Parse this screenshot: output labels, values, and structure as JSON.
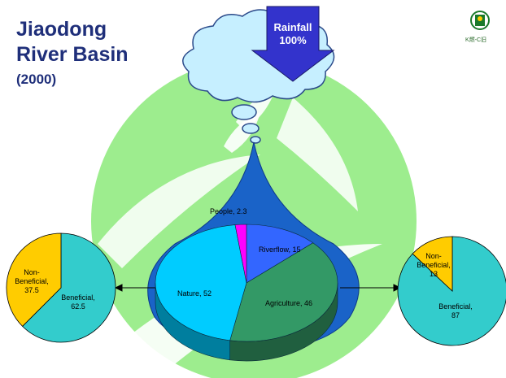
{
  "slide": {
    "title_line1": "Jiaodong",
    "title_line2": "River Basin",
    "year": "(2000)",
    "rainfall_line1": "Rainfall",
    "rainfall_line2": "100%",
    "logo_text": "K燃-C旧"
  },
  "colors": {
    "nature": "#00ccff",
    "agriculture": "#339966",
    "riverflow": "#3366ff",
    "people": "#ff00ff",
    "beneficial": "#33cccc",
    "non_beneficial": "#ffcc00",
    "background_leaf": "#99ee88",
    "drop": "#1a63c8"
  },
  "chart_data": [
    {
      "type": "pie",
      "style": "3d",
      "slices": [
        {
          "label": "Riverflow, 15",
          "name": "Riverflow",
          "value": 15
        },
        {
          "label": "Agriculture, 46",
          "name": "Agriculture",
          "value": 46
        },
        {
          "label": "Nature, 52",
          "name": "Nature",
          "value": 52
        },
        {
          "label": "People, 2.3",
          "name": "People",
          "value": 2.3
        }
      ]
    },
    {
      "type": "pie",
      "slices": [
        {
          "label_line1": "Beneficial,",
          "label_line2": "62.5",
          "name": "Beneficial",
          "value": 62.5
        },
        {
          "label_line1": "Non-",
          "label_line2": "Beneficial,",
          "label_line3": "37.5",
          "name": "Non-Beneficial",
          "value": 37.5
        }
      ]
    },
    {
      "type": "pie",
      "slices": [
        {
          "label_line1": "Beneficial,",
          "label_line2": "87",
          "name": "Beneficial",
          "value": 87
        },
        {
          "label_line1": "Non-",
          "label_line2": "Beneficial,",
          "label_line3": "13",
          "name": "Non-Beneficial",
          "value": 13
        }
      ]
    }
  ]
}
